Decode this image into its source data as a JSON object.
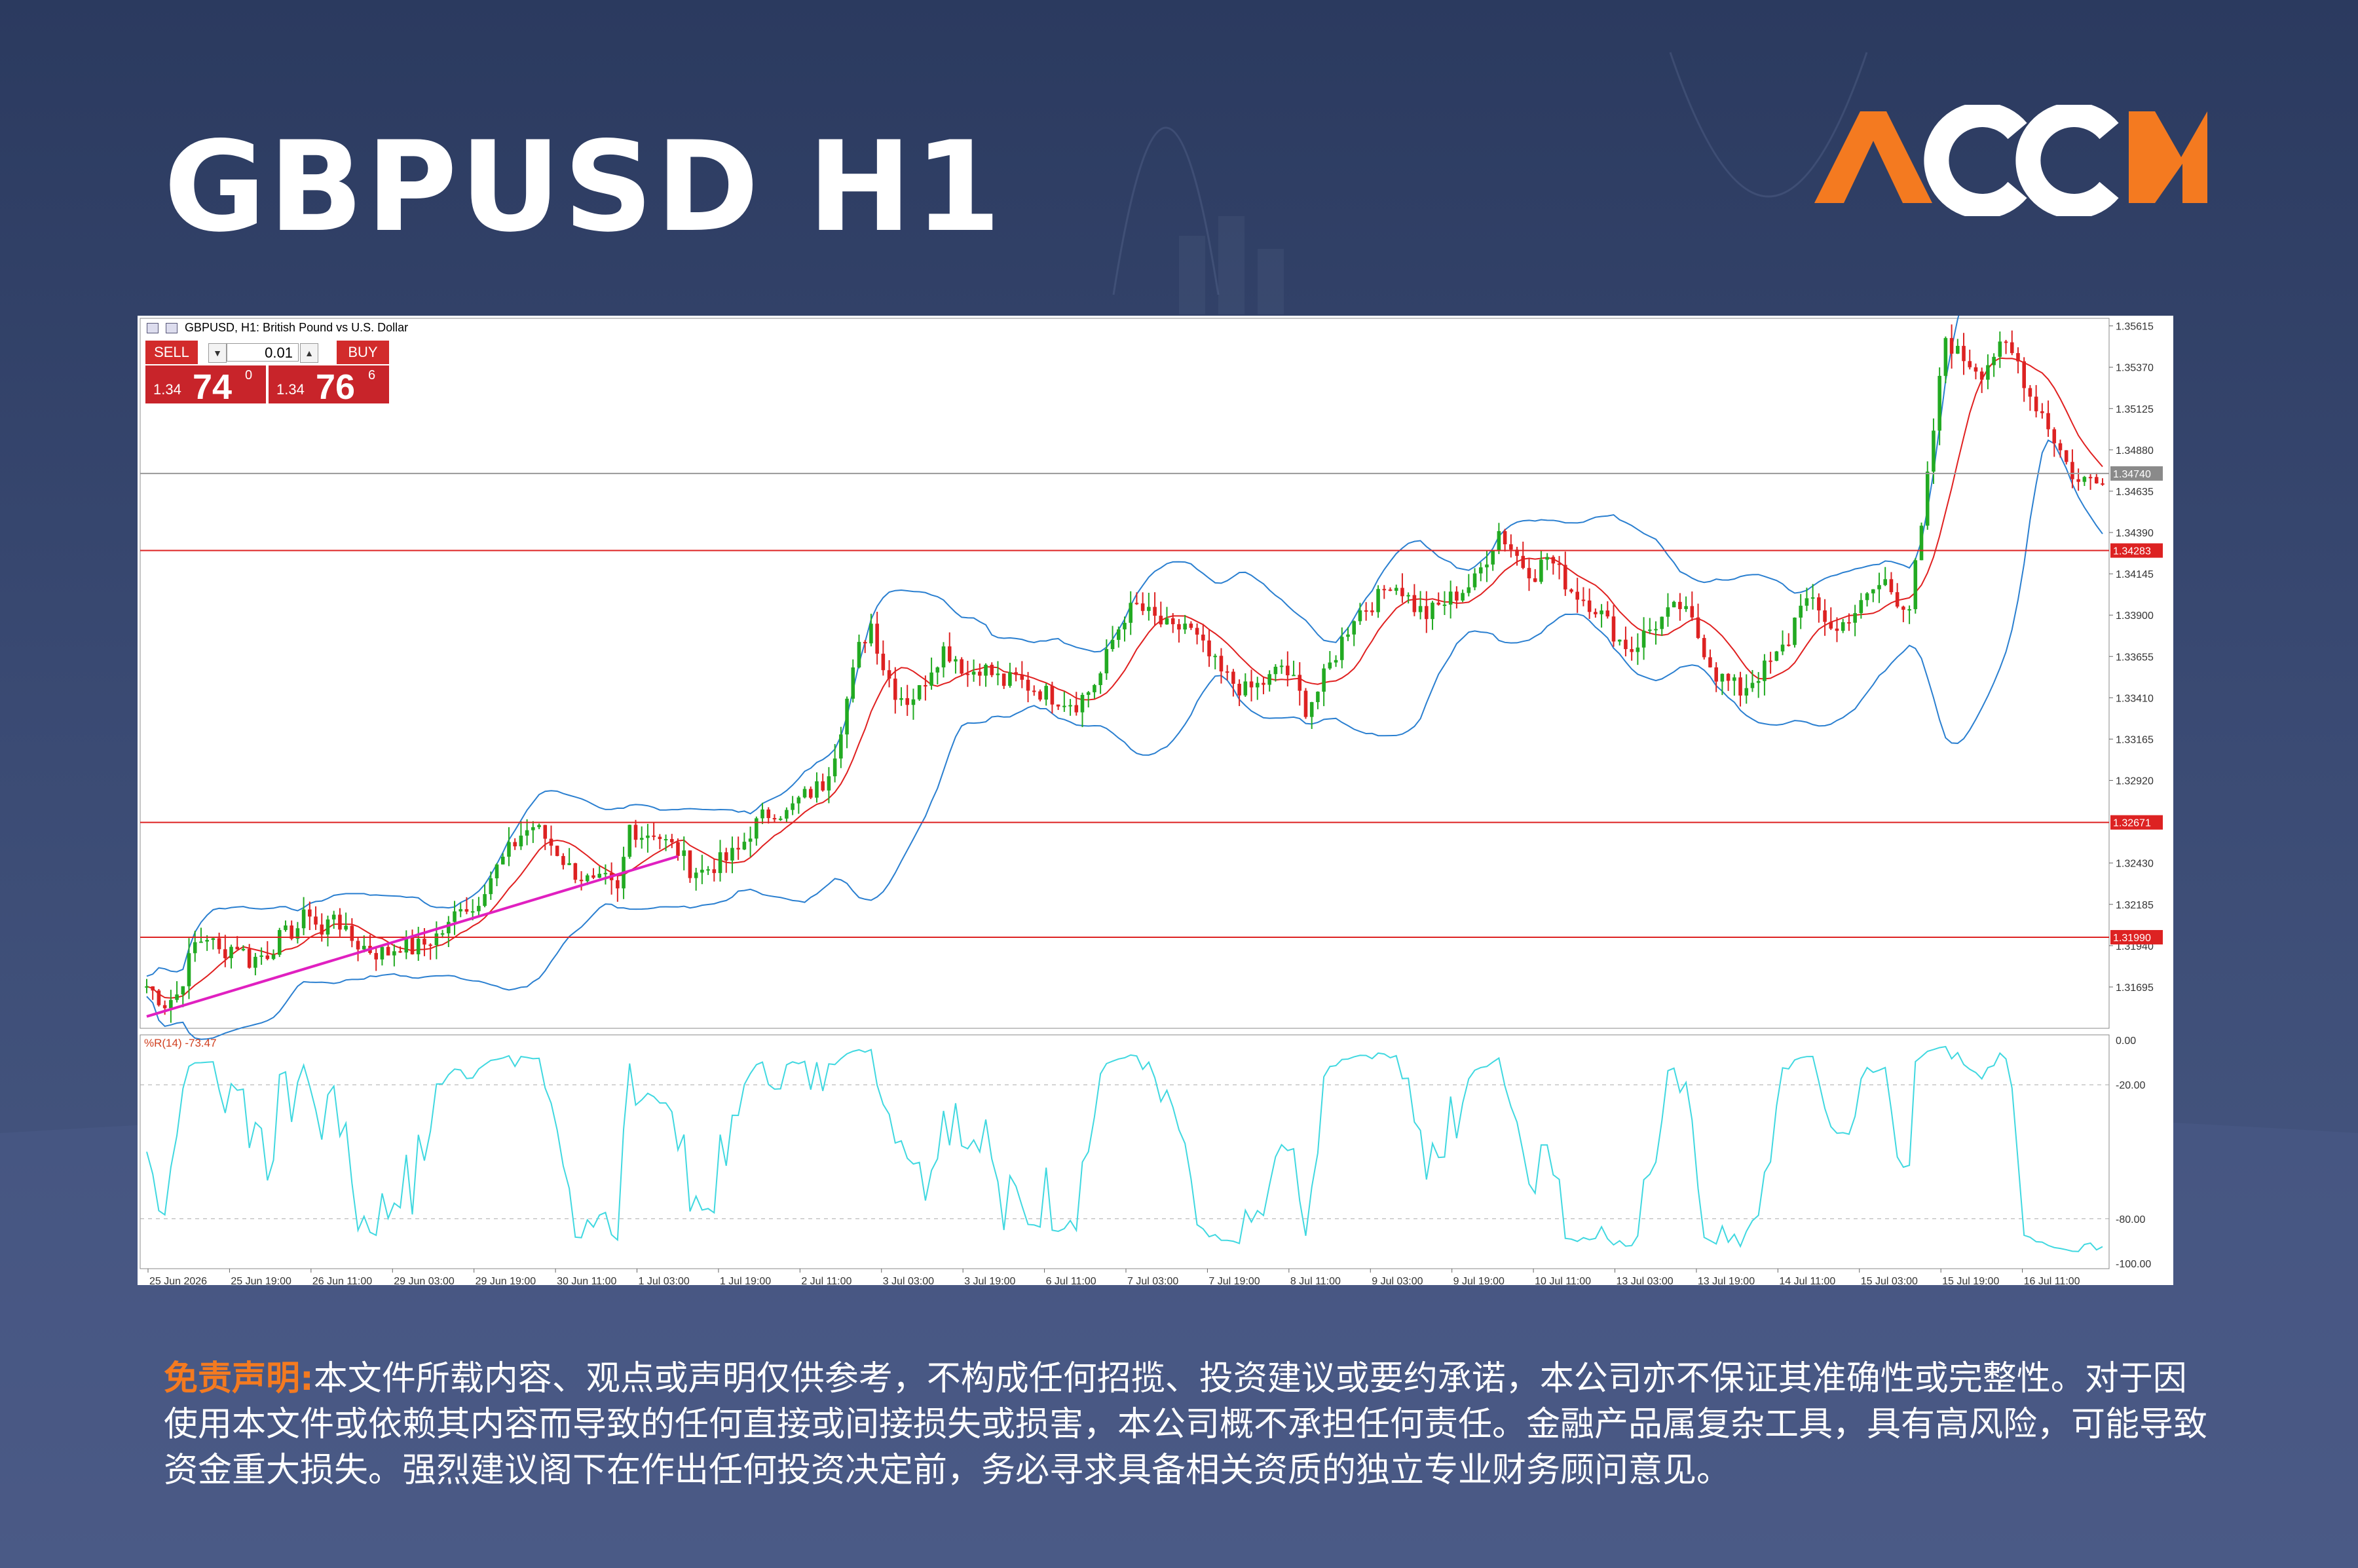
{
  "title": "GBPUSD H1",
  "logo": {
    "text": "ACCM",
    "colors": {
      "orange": "#f47a20",
      "white": "#ffffff"
    }
  },
  "chart_header": {
    "caption": "GBPUSD, H1: British Pound vs U.S. Dollar"
  },
  "trade_panel": {
    "sell_label": "SELL",
    "buy_label": "BUY",
    "lot": "0.01",
    "sell_price_prefix": "1.34",
    "sell_price_big": "74",
    "sell_price_sup": "0",
    "buy_price_prefix": "1.34",
    "buy_price_big": "76",
    "buy_price_sup": "6"
  },
  "indicator_label": "%R(14) -73.47",
  "disclaimer": {
    "lead": "免责声明:",
    "text": "本文件所载内容、观点或声明仅供参考，不构成任何招揽、投资建议或要约承诺，本公司亦不保证其准确性或完整性。对于因使用本文件或依赖其内容而导致的任何直接或间接损失或损害，本公司概不承担任何责任。金融产品属复杂工具，具有高风险，可能导致资金重大损失。强烈建议阁下在作出任何投资决定前，务必寻求具备相关资质的独立专业财务顾问意见。"
  },
  "chart_data": {
    "type": "candlestick",
    "symbol": "GBPUSD",
    "timeframe": "H1",
    "y_ticks": [
      "1.35615",
      "1.35370",
      "1.35125",
      "1.34880",
      "1.34635",
      "1.34390",
      "1.34145",
      "1.33900",
      "1.33655",
      "1.33410",
      "1.33165",
      "1.32920",
      "1.32430",
      "1.32185",
      "1.31940",
      "1.31695"
    ],
    "ylim": [
      1.3145,
      1.3566
    ],
    "x_ticks": [
      "25 Jun 2026",
      "25 Jun 19:00",
      "26 Jun 11:00",
      "29 Jun 03:00",
      "29 Jun 19:00",
      "30 Jun 11:00",
      "1 Jul 03:00",
      "1 Jul 19:00",
      "2 Jul 11:00",
      "3 Jul 03:00",
      "3 Jul 19:00",
      "6 Jul 11:00",
      "7 Jul 03:00",
      "7 Jul 19:00",
      "8 Jul 11:00",
      "9 Jul 03:00",
      "9 Jul 19:00",
      "10 Jul 11:00",
      "13 Jul 03:00",
      "13 Jul 19:00",
      "14 Jul 11:00",
      "15 Jul 03:00",
      "15 Jul 19:00",
      "16 Jul 11:00"
    ],
    "price_levels": [
      {
        "value": 1.34283,
        "label": "1.34283",
        "color": "#dd2222"
      },
      {
        "value": 1.32671,
        "label": "1.32671",
        "color": "#dd2222"
      },
      {
        "value": 1.3199,
        "label": "1.31990",
        "color": "#dd2222"
      }
    ],
    "current_price": {
      "value": 1.3474,
      "label": "1.34740"
    },
    "trendline": {
      "from": {
        "bar": 0,
        "price": 1.3152
      },
      "to": {
        "bar": 88,
        "price": 1.3247
      },
      "color": "#e020c0"
    },
    "close_path": [
      [
        0,
        1.317
      ],
      [
        3,
        1.316
      ],
      [
        5,
        1.3165
      ],
      [
        8,
        1.3195
      ],
      [
        10,
        1.32
      ],
      [
        12,
        1.319
      ],
      [
        15,
        1.3195
      ],
      [
        17,
        1.3185
      ],
      [
        20,
        1.319
      ],
      [
        22,
        1.3198
      ],
      [
        25,
        1.3205
      ],
      [
        27,
        1.3215
      ],
      [
        29,
        1.32
      ],
      [
        31,
        1.3215
      ],
      [
        33,
        1.32
      ],
      [
        35,
        1.3195
      ],
      [
        38,
        1.319
      ],
      [
        40,
        1.319
      ],
      [
        42,
        1.3195
      ],
      [
        44,
        1.3192
      ],
      [
        46,
        1.3195
      ],
      [
        48,
        1.32
      ],
      [
        50,
        1.3205
      ],
      [
        52,
        1.322
      ],
      [
        54,
        1.3215
      ],
      [
        56,
        1.323
      ],
      [
        58,
        1.324
      ],
      [
        60,
        1.325
      ],
      [
        62,
        1.326
      ],
      [
        64,
        1.3265
      ],
      [
        66,
        1.3258
      ],
      [
        68,
        1.325
      ],
      [
        70,
        1.324
      ],
      [
        72,
        1.3235
      ],
      [
        74,
        1.323
      ],
      [
        76,
        1.3232
      ],
      [
        78,
        1.3225
      ],
      [
        80,
        1.3265
      ],
      [
        82,
        1.326
      ],
      [
        84,
        1.3262
      ],
      [
        86,
        1.3255
      ],
      [
        88,
        1.325
      ],
      [
        90,
        1.324
      ],
      [
        92,
        1.3238
      ],
      [
        94,
        1.3242
      ],
      [
        96,
        1.3245
      ],
      [
        98,
        1.325
      ],
      [
        100,
        1.3262
      ],
      [
        102,
        1.327
      ],
      [
        104,
        1.3275
      ],
      [
        106,
        1.3272
      ],
      [
        108,
        1.328
      ],
      [
        110,
        1.3285
      ],
      [
        112,
        1.329
      ],
      [
        114,
        1.331
      ],
      [
        116,
        1.334
      ],
      [
        118,
        1.337
      ],
      [
        120,
        1.3385
      ],
      [
        122,
        1.336
      ],
      [
        124,
        1.3345
      ],
      [
        126,
        1.334
      ],
      [
        128,
        1.3345
      ],
      [
        130,
        1.336
      ],
      [
        132,
        1.337
      ],
      [
        134,
        1.3365
      ],
      [
        136,
        1.3355
      ],
      [
        138,
        1.336
      ],
      [
        140,
        1.3355
      ],
      [
        142,
        1.335
      ],
      [
        144,
        1.3352
      ],
      [
        146,
        1.3348
      ],
      [
        148,
        1.3345
      ],
      [
        150,
        1.3342
      ],
      [
        152,
        1.334
      ],
      [
        154,
        1.3338
      ],
      [
        156,
        1.3345
      ],
      [
        158,
        1.3355
      ],
      [
        160,
        1.3375
      ],
      [
        162,
        1.339
      ],
      [
        164,
        1.3395
      ],
      [
        166,
        1.339
      ],
      [
        168,
        1.3385
      ],
      [
        170,
        1.338
      ],
      [
        172,
        1.3385
      ],
      [
        174,
        1.3375
      ],
      [
        176,
        1.3365
      ],
      [
        178,
        1.3355
      ],
      [
        180,
        1.335
      ],
      [
        182,
        1.3345
      ],
      [
        184,
        1.3348
      ],
      [
        186,
        1.3352
      ],
      [
        188,
        1.336
      ],
      [
        190,
        1.335
      ],
      [
        192,
        1.3335
      ],
      [
        194,
        1.3345
      ],
      [
        196,
        1.336
      ],
      [
        198,
        1.3375
      ],
      [
        200,
        1.339
      ],
      [
        202,
        1.3395
      ],
      [
        204,
        1.34
      ],
      [
        206,
        1.341
      ],
      [
        208,
        1.3405
      ],
      [
        210,
        1.3395
      ],
      [
        212,
        1.339
      ],
      [
        214,
        1.3395
      ],
      [
        216,
        1.34
      ],
      [
        218,
        1.3405
      ],
      [
        220,
        1.341
      ],
      [
        222,
        1.3425
      ],
      [
        224,
        1.344
      ],
      [
        226,
        1.343
      ],
      [
        228,
        1.342
      ],
      [
        230,
        1.3415
      ],
      [
        232,
        1.3425
      ],
      [
        234,
        1.3415
      ],
      [
        236,
        1.3405
      ],
      [
        238,
        1.34
      ],
      [
        240,
        1.3395
      ],
      [
        242,
        1.3385
      ],
      [
        244,
        1.3375
      ],
      [
        246,
        1.337
      ],
      [
        248,
        1.3378
      ],
      [
        250,
        1.3385
      ],
      [
        252,
        1.339
      ],
      [
        254,
        1.3395
      ],
      [
        256,
        1.3385
      ],
      [
        258,
        1.337
      ],
      [
        260,
        1.3355
      ],
      [
        262,
        1.335
      ],
      [
        264,
        1.3345
      ],
      [
        266,
        1.3352
      ],
      [
        268,
        1.3358
      ],
      [
        270,
        1.3365
      ],
      [
        272,
        1.3375
      ],
      [
        274,
        1.34
      ],
      [
        276,
        1.3395
      ],
      [
        278,
        1.3388
      ],
      [
        280,
        1.338
      ],
      [
        282,
        1.339
      ],
      [
        284,
        1.3395
      ],
      [
        286,
        1.3405
      ],
      [
        288,
        1.341
      ],
      [
        290,
        1.34
      ],
      [
        292,
        1.3395
      ],
      [
        294,
        1.344
      ],
      [
        296,
        1.35
      ],
      [
        298,
        1.3555
      ],
      [
        300,
        1.3545
      ],
      [
        302,
        1.354
      ],
      [
        304,
        1.3535
      ],
      [
        306,
        1.3545
      ],
      [
        308,
        1.3548
      ],
      [
        310,
        1.354
      ],
      [
        312,
        1.352
      ],
      [
        314,
        1.351
      ],
      [
        316,
        1.3495
      ],
      [
        318,
        1.348
      ],
      [
        320,
        1.3468
      ],
      [
        322,
        1.3472
      ],
      [
        324,
        1.3474
      ]
    ],
    "indicator": {
      "name": "%R(14)",
      "value": -73.47,
      "levels": [
        0,
        -20,
        -80,
        -100
      ],
      "level_labels": [
        "0.00",
        "-20.00",
        "-80.00",
        "-100.00"
      ],
      "color": "#40d8e0"
    }
  }
}
